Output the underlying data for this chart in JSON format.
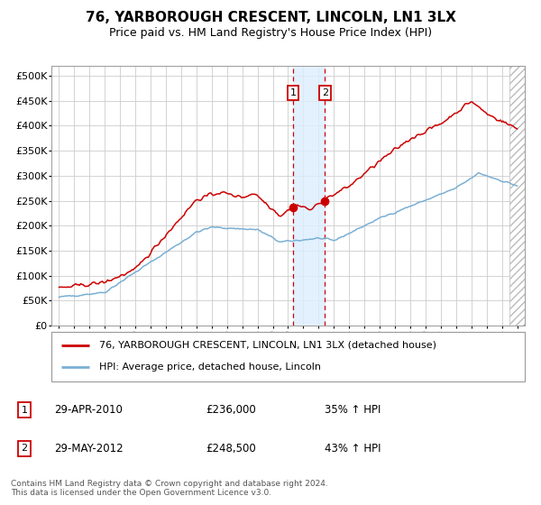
{
  "title": "76, YARBOROUGH CRESCENT, LINCOLN, LN1 3LX",
  "subtitle": "Price paid vs. HM Land Registry's House Price Index (HPI)",
  "legend_line1": "76, YARBOROUGH CRESCENT, LINCOLN, LN1 3LX (detached house)",
  "legend_line2": "HPI: Average price, detached house, Lincoln",
  "footer": "Contains HM Land Registry data © Crown copyright and database right 2024.\nThis data is licensed under the Open Government Licence v3.0.",
  "transaction1_date": "29-APR-2010",
  "transaction1_price": "£236,000",
  "transaction1_hpi": "35% ↑ HPI",
  "transaction2_date": "29-MAY-2012",
  "transaction2_price": "£248,500",
  "transaction2_hpi": "43% ↑ HPI",
  "sale1_x": 2010.33,
  "sale1_y": 236000,
  "sale2_x": 2012.42,
  "sale2_y": 248500,
  "vline1_x": 2010.33,
  "vline2_x": 2012.42,
  "red_color": "#cc0000",
  "blue_color": "#7aafd4",
  "background_color": "#ffffff",
  "grid_color": "#cccccc",
  "shade_color": "#ddeeff",
  "hatch_color": "#bbbbbb",
  "xlim": [
    1994.5,
    2025.5
  ],
  "ylim": [
    0,
    520000
  ],
  "yticks": [
    0,
    50000,
    100000,
    150000,
    200000,
    250000,
    300000,
    350000,
    400000,
    450000,
    500000
  ],
  "xticks": [
    1995,
    1996,
    1997,
    1998,
    1999,
    2000,
    2001,
    2002,
    2003,
    2004,
    2005,
    2006,
    2007,
    2008,
    2009,
    2010,
    2011,
    2012,
    2013,
    2014,
    2015,
    2016,
    2017,
    2018,
    2019,
    2020,
    2021,
    2022,
    2023,
    2024,
    2025
  ],
  "hatch_start": 2024.5
}
